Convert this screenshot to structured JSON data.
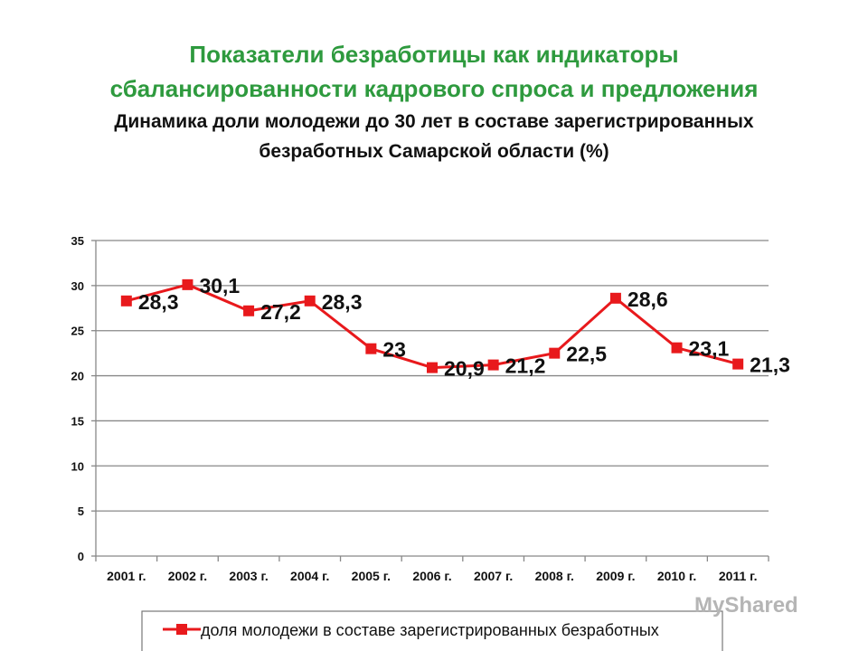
{
  "header": {
    "title_line1": "Показатели безработицы как индикаторы",
    "title_line2": "сбалансированности кадрового спроса и предложения",
    "subtitle_line1": "Динамика доли молодежи до 30 лет в составе зарегистрированных",
    "subtitle_line2": "безработных Самарской области (%)"
  },
  "watermark": "MyShared",
  "colors": {
    "title": "#2e9a3e",
    "series": "#e8191c",
    "grid": "#888888"
  },
  "chart_data": {
    "type": "line",
    "categories": [
      "2001 г.",
      "2002 г.",
      "2003 г.",
      "2004 г.",
      "2005 г.",
      "2006 г.",
      "2007 г.",
      "2008 г.",
      "2009 г.",
      "2010 г.",
      "2011 г."
    ],
    "series": [
      {
        "name": "доля молодежи в составе зарегистрированных безработных",
        "values": [
          28.3,
          30.1,
          27.2,
          28.3,
          23,
          20.9,
          21.2,
          22.5,
          28.6,
          23.1,
          21.3
        ],
        "labels": [
          "28,3",
          "30,1",
          "27,2",
          "28,3",
          "23",
          "20,9",
          "21,2",
          "22,5",
          "28,6",
          "23,1",
          "21,3"
        ]
      }
    ],
    "ylim": [
      0,
      35
    ],
    "yticks": [
      0,
      5,
      10,
      15,
      20,
      25,
      30,
      35
    ],
    "grid": true,
    "legend": "bottom"
  }
}
